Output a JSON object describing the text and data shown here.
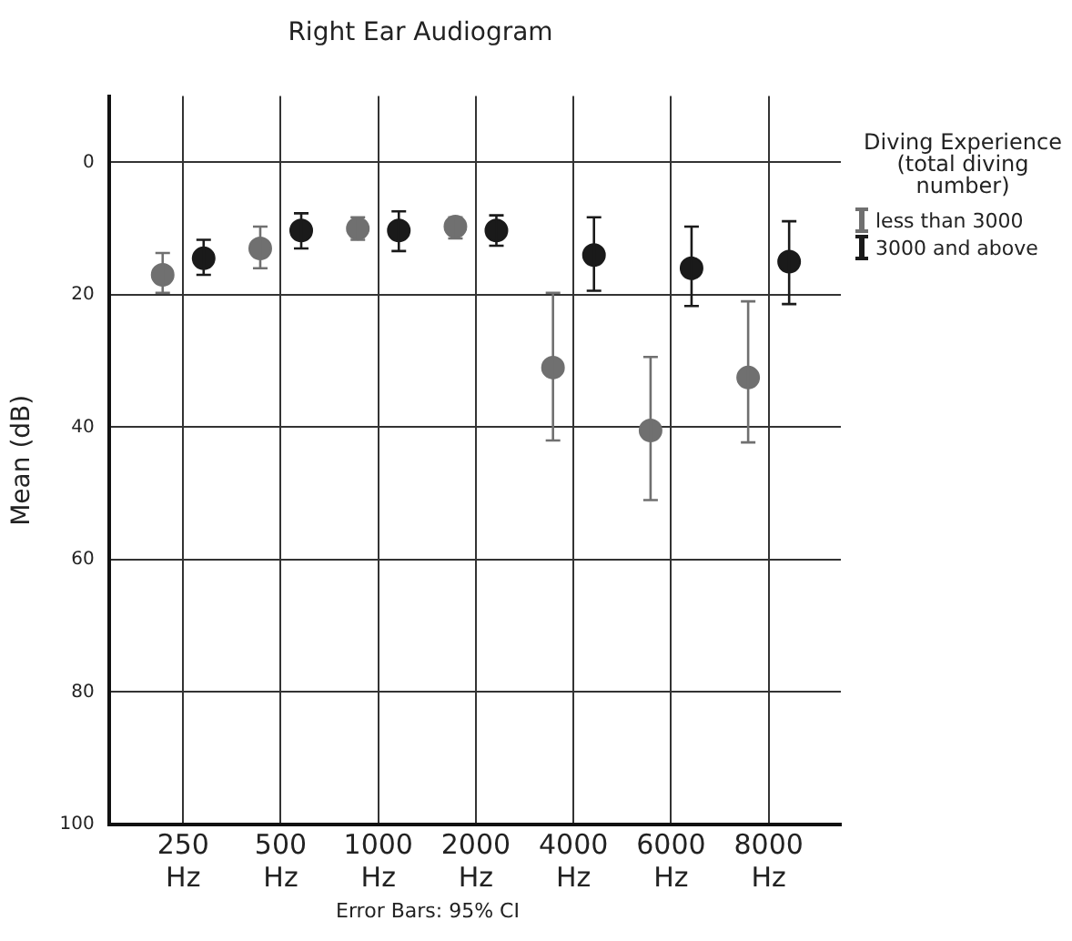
{
  "chart_data": {
    "type": "scatter",
    "title": "Right Ear Audiogram",
    "ylabel": "Mean (dB)",
    "legend_title": "Diving Experience (total diving number)",
    "categories": [
      "250 Hz",
      "500 Hz",
      "1000 Hz",
      "2000 Hz",
      "4000 Hz",
      "6000 Hz",
      "8000 Hz"
    ],
    "series": [
      {
        "name": "less than 3000",
        "color": "#707070",
        "values": [
          17,
          13,
          10,
          9.7,
          31,
          40.5,
          32.5
        ],
        "errors": [
          [
            13.7,
            19.7
          ],
          [
            9.7,
            16
          ],
          [
            8.3,
            11.7
          ],
          [
            8.3,
            11.5
          ],
          [
            19.7,
            42
          ],
          [
            29.4,
            51
          ],
          [
            21,
            42.3
          ]
        ]
      },
      {
        "name": "3000 and above",
        "color": "#1a1a1a",
        "values": [
          14.5,
          10.3,
          10.3,
          10.3,
          14,
          16,
          15
        ],
        "errors": [
          [
            11.7,
            17
          ],
          [
            7.7,
            13
          ],
          [
            7.4,
            13.4
          ],
          [
            8,
            12.6
          ],
          [
            8.3,
            19.4
          ],
          [
            9.7,
            21.7
          ],
          [
            8.9,
            21.4
          ]
        ]
      }
    ],
    "ylim": [
      100,
      -10
    ],
    "yticks": [
      0,
      20,
      40,
      60,
      80,
      100
    ],
    "grid": true,
    "legend": "right",
    "marker": "circle",
    "annotations": [
      "Error Bars: 95% CI"
    ]
  }
}
